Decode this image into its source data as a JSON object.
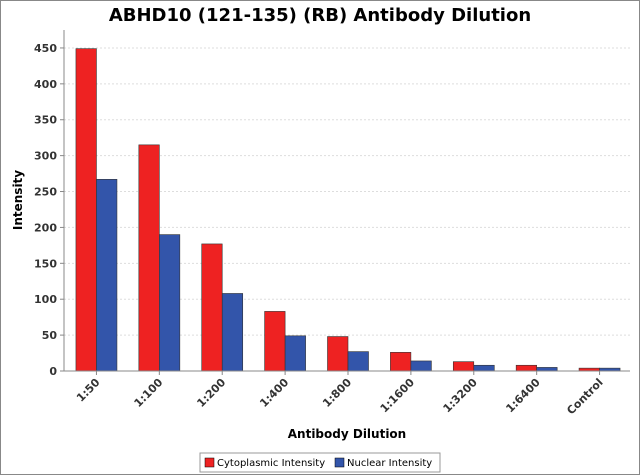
{
  "chart_data": {
    "type": "bar",
    "title": "ABHD10 (121-135) (RB) Antibody Dilution",
    "xlabel": "Antibody Dilution",
    "ylabel": "Intensity",
    "categories": [
      "1:50",
      "1:100",
      "1:200",
      "1:400",
      "1:800",
      "1:1600",
      "1:3200",
      "1:6400",
      "Control"
    ],
    "series": [
      {
        "name": "Cytoplasmic Intensity",
        "color": "#ee2222",
        "values": [
          449,
          315,
          177,
          83,
          48,
          26,
          13,
          8,
          4
        ]
      },
      {
        "name": "Nuclear Intensity",
        "color": "#3355aa",
        "values": [
          267,
          190,
          108,
          49,
          27,
          14,
          8,
          5,
          4
        ]
      }
    ],
    "ylim": [
      0,
      475
    ],
    "yticks": [
      0,
      50,
      100,
      150,
      200,
      250,
      300,
      350,
      400,
      450
    ],
    "grid": true,
    "legend_position": "bottom"
  }
}
